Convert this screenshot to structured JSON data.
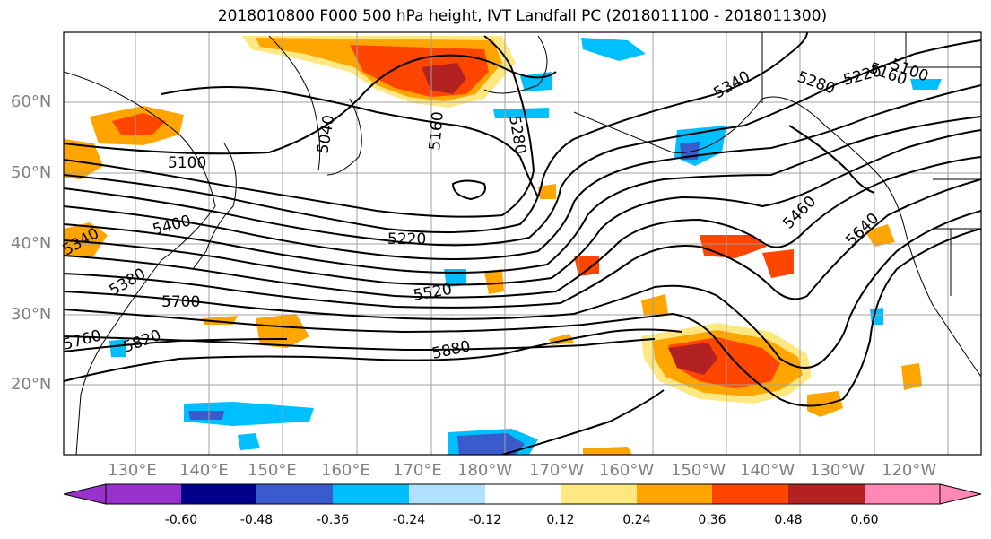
{
  "title": "2018010800 F000 500 hPa height, IVT Landfall PC (2018011100 - 2018011300)",
  "lon_labels": [
    "130°E",
    "140°E",
    "150°E",
    "160°E",
    "170°E",
    "180°W",
    "170°W",
    "160°W",
    "150°W",
    "140°W",
    "130°W",
    "120°W"
  ],
  "lat_labels": [
    "60°N",
    "50°N",
    "40°N",
    "30°N",
    "20°N"
  ],
  "contour_labels": [
    "5100",
    "5040",
    "5160",
    "5280",
    "5340",
    "5280",
    "5220",
    "5160",
    "5100",
    "5400",
    "5220",
    "5460",
    "5640",
    "5340",
    "5380",
    "5700",
    "5520",
    "5760",
    "5820",
    "5880"
  ],
  "colorbar": {
    "ticks": [
      "-0.60",
      "-0.48",
      "-0.36",
      "-0.24",
      "-0.12",
      "0.12",
      "0.24",
      "0.36",
      "0.48",
      "0.60"
    ],
    "colors": [
      "#9932cc",
      "#00008b",
      "#3a5bcc",
      "#00bfff",
      "#b0e2ff",
      "#ffffff",
      "#ffe882",
      "#ffa500",
      "#ff4500",
      "#b22222",
      "#ff88b4"
    ]
  },
  "colors": {
    "pos_low": "#ffe882",
    "pos_mid": "#ffa500",
    "pos_high": "#ff4500",
    "pos_top": "#b22222",
    "neg_low": "#b0e2ff",
    "neg_mid": "#00bfff",
    "neg_high": "#3a5bcc",
    "neg_top": "#00008b",
    "grid": "#a0a0a0"
  }
}
